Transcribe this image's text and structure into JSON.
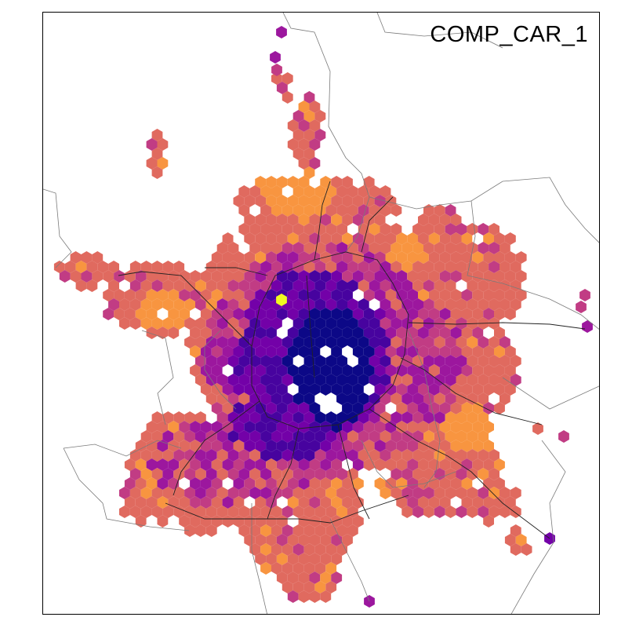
{
  "map": {
    "title": "COMP_CAR_1",
    "palette": {
      "c0": "#0c0887",
      "c1": "#47039f",
      "c2": "#7301a8",
      "c3": "#9c179e",
      "c4": "#c13c84",
      "c5": "#e06a5f",
      "c6": "#f89540",
      "hot": "#f0f921"
    }
  }
}
